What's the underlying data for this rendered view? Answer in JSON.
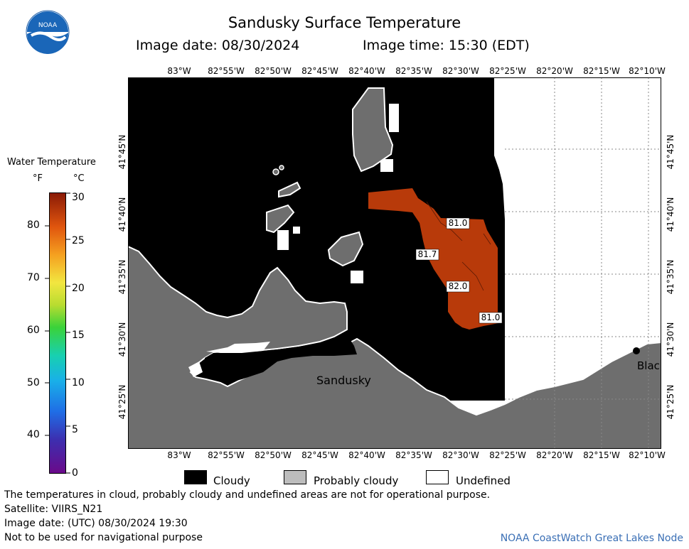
{
  "header": {
    "title": "Sandusky Surface Temperature",
    "image_date": "Image date: 08/30/2024",
    "image_time": "Image time: 15:30 (EDT)"
  },
  "logo": {
    "text": "NOAA"
  },
  "longitude_labels": [
    "83°W",
    "82°55'W",
    "82°50'W",
    "82°45'W",
    "82°40'W",
    "82°35'W",
    "82°30'W",
    "82°25'W",
    "82°20'W",
    "82°15'W",
    "82°10'W"
  ],
  "latitude_labels": [
    "41°45'N",
    "41°40'N",
    "41°35'N",
    "41°30'N",
    "41°25'N"
  ],
  "map_labels": {
    "city": "Sandusky",
    "city_partial": "Blac"
  },
  "temperature_labels": [
    "81.0",
    "81.7",
    "82.0",
    "81.0"
  ],
  "colorbar": {
    "title": "Water Temperature",
    "unit_f": "°F",
    "unit_c": "°C",
    "f_ticks": [
      "40",
      "50",
      "60",
      "70",
      "80"
    ],
    "c_ticks": [
      "0",
      "5",
      "10",
      "15",
      "20",
      "25",
      "30"
    ]
  },
  "legend_key": [
    {
      "label": "Cloudy",
      "color": "#000000"
    },
    {
      "label": "Probably cloudy",
      "color": "#bdbdbd"
    },
    {
      "label": "Undefined",
      "color": "#ffffff"
    }
  ],
  "footer": {
    "note": "The temperatures in cloud, probably cloudy and undefined areas are not for operational purpose.",
    "satellite": "Satellite: VIIRS_N21",
    "utc_date": "Image date: (UTC) 08/30/2024  19:30",
    "warning": "Not to be used for navigational purpose",
    "credit": "NOAA CoastWatch Great Lakes Node"
  },
  "colors": {
    "land": "#6e6e6e",
    "cloud": "#000000",
    "water_warm": "#b83a0a",
    "undefined": "#ffffff",
    "grid": "#888888"
  }
}
